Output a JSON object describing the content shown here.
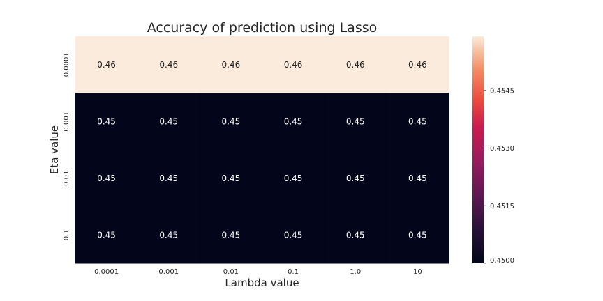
{
  "chart_data": {
    "type": "heatmap",
    "title": "Accuracy of prediction using Lasso",
    "xlabel": "Lambda value",
    "ylabel": "Eta value",
    "x_categories": [
      "0.0001",
      "0.001",
      "0.01",
      "0.1",
      "1.0",
      "10"
    ],
    "y_categories": [
      "0.0001",
      "0.001",
      "0.01",
      "0.1"
    ],
    "values": [
      [
        0.46,
        0.46,
        0.46,
        0.46,
        0.46,
        0.46
      ],
      [
        0.45,
        0.45,
        0.45,
        0.45,
        0.45,
        0.45
      ],
      [
        0.45,
        0.45,
        0.45,
        0.45,
        0.45,
        0.45
      ],
      [
        0.45,
        0.45,
        0.45,
        0.45,
        0.45,
        0.45
      ]
    ],
    "cell_labels": [
      [
        "0.46",
        "0.46",
        "0.46",
        "0.46",
        "0.46",
        "0.46"
      ],
      [
        "0.45",
        "0.45",
        "0.45",
        "0.45",
        "0.45",
        "0.45"
      ],
      [
        "0.45",
        "0.45",
        "0.45",
        "0.45",
        "0.45",
        "0.45"
      ],
      [
        "0.45",
        "0.45",
        "0.45",
        "0.45",
        "0.45",
        "0.45"
      ]
    ],
    "colorbar": {
      "range": [
        0.45,
        0.4559
      ],
      "ticks": [
        "0.4500",
        "0.4515",
        "0.4530",
        "0.4545"
      ],
      "colormap": "rocket",
      "low_color": "#03051a",
      "high_color": "#faebdd"
    },
    "grid": false
  }
}
